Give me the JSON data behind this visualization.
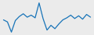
{
  "values": [
    0.3,
    0.0,
    -1.5,
    0.2,
    0.8,
    1.2,
    0.7,
    1.0,
    0.6,
    2.8,
    0.5,
    -1.2,
    -0.5,
    -1.0,
    -0.3,
    0.3,
    0.6,
    1.0,
    0.5,
    0.9,
    0.4,
    1.1,
    0.7
  ],
  "line_color": "#1874b8",
  "line_width": 0.9,
  "background_color": "#ebebeb"
}
